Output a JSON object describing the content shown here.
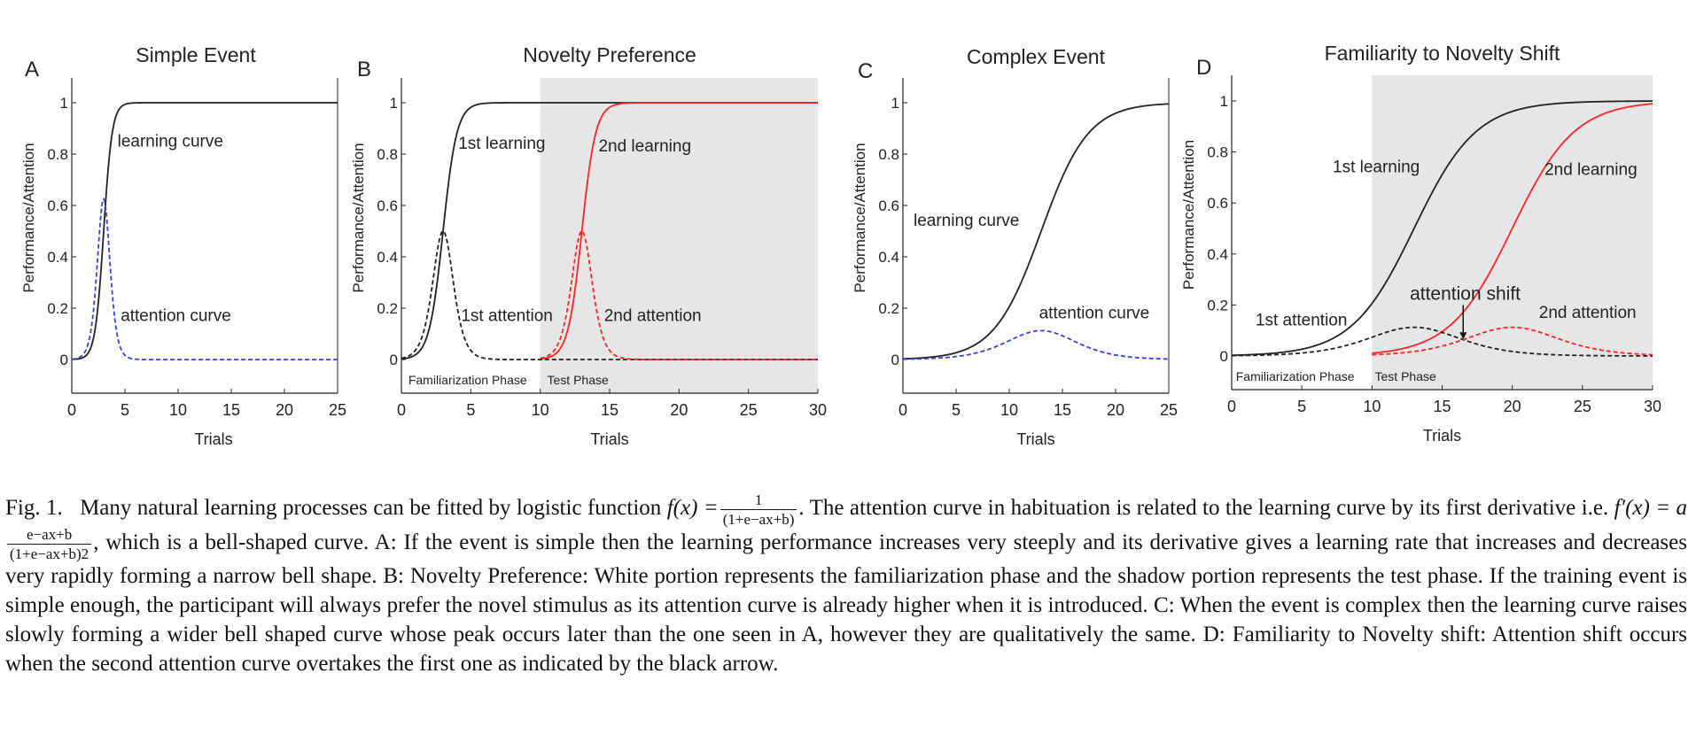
{
  "chart_data": [
    {
      "panel_letter": "A",
      "type": "line",
      "title": "Simple Event",
      "xlabel": "Trials",
      "ylabel": "Performance/Attention",
      "xlim": [
        0,
        25
      ],
      "ylim": [
        0,
        1
      ],
      "xticks": [
        "0",
        "5",
        "10",
        "15",
        "20",
        "25"
      ],
      "yticks": [
        "0",
        "0.2",
        "0.4",
        "0.6",
        "0.8",
        "1"
      ],
      "shaded_region": null,
      "series": [
        {
          "name": "learning curve",
          "style": "solid",
          "color": "#222222",
          "fn": "logistic",
          "a": 2.5,
          "b": 7.5,
          "x_start": 0
        },
        {
          "name": "attention curve",
          "style": "dashed",
          "color": "#3344dd",
          "fn": "derivative",
          "a": 2.5,
          "b": 7.5,
          "x_start": 0
        }
      ],
      "annotations": [
        {
          "text": "learning curve",
          "x": 4.3,
          "y": 0.83
        },
        {
          "text": "attention curve",
          "x": 4.6,
          "y": 0.15
        }
      ],
      "phase_labels": []
    },
    {
      "panel_letter": "B",
      "type": "line",
      "title": "Novelty Preference",
      "xlabel": "Trials",
      "ylabel": "Performance/Attention",
      "xlim": [
        0,
        30
      ],
      "ylim": [
        0,
        1
      ],
      "xticks": [
        "0",
        "5",
        "10",
        "15",
        "20",
        "25",
        "30"
      ],
      "yticks": [
        "0",
        "0.2",
        "0.4",
        "0.6",
        "0.8",
        "1"
      ],
      "shaded_region": [
        10,
        30
      ],
      "series": [
        {
          "name": "1st learning",
          "style": "solid",
          "color": "#222222",
          "fn": "logistic",
          "a": 2.0,
          "b": 6.0,
          "x_start": 0
        },
        {
          "name": "2nd learning",
          "style": "solid",
          "color": "#ff2222",
          "fn": "logistic",
          "a": 2.0,
          "b": 26.0,
          "x_start": 10
        },
        {
          "name": "1st attention",
          "style": "dashed",
          "color": "#222222",
          "fn": "derivative",
          "a": 2.0,
          "b": 6.0,
          "x_start": 0
        },
        {
          "name": "2nd attention",
          "style": "dashed",
          "color": "#ff2222",
          "fn": "derivative",
          "a": 2.0,
          "b": 26.0,
          "x_start": 10
        }
      ],
      "annotations": [
        {
          "text": "1st learning",
          "x": 4.1,
          "y": 0.82
        },
        {
          "text": "2nd learning",
          "x": 14.2,
          "y": 0.81
        },
        {
          "text": "1st attention",
          "x": 4.3,
          "y": 0.15
        },
        {
          "text": "2nd attention",
          "x": 14.6,
          "y": 0.15
        }
      ],
      "phase_labels": [
        {
          "text": "Familiarization Phase",
          "x": 0.5
        },
        {
          "text": "Test Phase",
          "x": 10.5
        }
      ]
    },
    {
      "panel_letter": "C",
      "type": "line",
      "title": "Complex Event",
      "xlabel": "Trials",
      "ylabel": "Performance/Attention",
      "xlim": [
        0,
        25
      ],
      "ylim": [
        0,
        1
      ],
      "xticks": [
        "0",
        "5",
        "10",
        "15",
        "20",
        "25"
      ],
      "yticks": [
        "0",
        "0.2",
        "0.4",
        "0.6",
        "0.8",
        "1"
      ],
      "shaded_region": null,
      "series": [
        {
          "name": "learning curve",
          "style": "solid",
          "color": "#222222",
          "fn": "logistic",
          "a": 0.45,
          "b": 5.85,
          "x_start": 0
        },
        {
          "name": "attention curve",
          "style": "dashed",
          "color": "#3344dd",
          "fn": "derivative",
          "a": 0.45,
          "b": 5.85,
          "x_start": 0
        }
      ],
      "annotations": [
        {
          "text": "learning curve",
          "x": 1.0,
          "y": 0.52
        },
        {
          "text": "attention curve",
          "x": 12.8,
          "y": 0.16
        }
      ],
      "phase_labels": []
    },
    {
      "panel_letter": "D",
      "type": "line",
      "title": "Familiarity to Novelty Shift",
      "xlabel": "Trials",
      "ylabel": "Performance/Attention",
      "xlim": [
        0,
        30
      ],
      "ylim": [
        0,
        1
      ],
      "xticks": [
        "0",
        "5",
        "10",
        "15",
        "20",
        "25",
        "30"
      ],
      "yticks": [
        "0",
        "0.2",
        "0.4",
        "0.6",
        "0.8",
        "1"
      ],
      "shaded_region": [
        10,
        30
      ],
      "series": [
        {
          "name": "1st learning",
          "style": "solid",
          "color": "#222222",
          "fn": "logistic",
          "a": 0.45,
          "b": 5.85,
          "x_start": 0
        },
        {
          "name": "2nd learning",
          "style": "solid",
          "color": "#ff2222",
          "fn": "logistic",
          "a": 0.45,
          "b": 9.0,
          "x_start": 10
        },
        {
          "name": "1st attention",
          "style": "dashed",
          "color": "#222222",
          "fn": "derivative",
          "a": 0.45,
          "b": 5.85,
          "x_start": 0
        },
        {
          "name": "2nd attention",
          "style": "dashed",
          "color": "#ff2222",
          "fn": "derivative",
          "a": 0.45,
          "b": 9.0,
          "x_start": 10
        }
      ],
      "annotations": [
        {
          "text": "1st learning",
          "x": 7.2,
          "y": 0.72
        },
        {
          "text": "2nd learning",
          "x": 22.3,
          "y": 0.71
        },
        {
          "text": "attention shift",
          "x": 12.7,
          "y": 0.22
        },
        {
          "text": "1st attention",
          "x": 1.7,
          "y": 0.12
        },
        {
          "text": "2nd attention",
          "x": 21.9,
          "y": 0.15
        }
      ],
      "phase_labels": [
        {
          "text": "Familiarization Phase",
          "x": 0.3
        },
        {
          "text": "Test Phase",
          "x": 10.2
        }
      ],
      "arrow": {
        "x": 16.5,
        "y_from": 0.2,
        "y_to": 0.065
      }
    }
  ],
  "caption": {
    "fig_label": "Fig. 1.",
    "sentence_1_before": "Many natural learning processes can be fitted by logistic function",
    "f_lhs": "f(x) =",
    "f_num": "1",
    "f_den": "(1+e−ax+b)",
    "sentence_1_after": ". The attention curve in habituation is related to the learning curve by its first derivative i.e.",
    "fp_lhs": "f′(x) = a",
    "fp_num": "e−ax+b",
    "fp_den": "(1+e−ax+b)2",
    "sentence_2": ", which is a bell-shaped curve. A: If the event is simple then the learning performance increases very steeply and its derivative gives a learning rate that increases and decreases very rapidly forming a narrow bell shape. B: Novelty Preference: White portion represents the familiarization phase and the shadow portion represents the test phase. If the training event is simple enough, the participant will always prefer the novel stimulus as its attention curve is already higher when it is introduced. C: When the event is complex then the learning curve raises slowly forming a wider bell shaped curve whose peak occurs later than the one seen in A, however they are qualitatively the same. D: Familiarity to Novelty shift: Attention shift occurs when the second attention curve overtakes the first one as indicated by the black arrow."
  }
}
